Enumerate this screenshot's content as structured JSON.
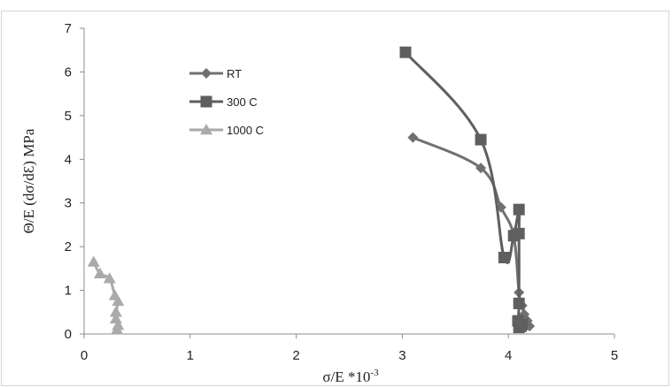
{
  "chart_data": {
    "type": "scatter",
    "xlabel": "σ/E *10",
    "xlabel_sup": "-3",
    "ylabel": "Θ/E (dσ/dƐ) MPa",
    "xlim": [
      0,
      5
    ],
    "ylim": [
      0,
      7
    ],
    "xticks": [
      "0",
      "1",
      "2",
      "3",
      "4",
      "5"
    ],
    "yticks": [
      "0",
      "1",
      "2",
      "3",
      "4",
      "5",
      "6",
      "7"
    ],
    "grid": false,
    "legend_position": "top-left",
    "series": [
      {
        "name": "RT",
        "marker": "diamond",
        "color": "#707070",
        "x": [
          3.1,
          3.74,
          3.93,
          4.05,
          4.1,
          4.13,
          4.15,
          4.18,
          4.2
        ],
        "y": [
          4.5,
          3.8,
          2.9,
          2.25,
          0.95,
          0.65,
          0.45,
          0.3,
          0.18
        ]
      },
      {
        "name": "300 C",
        "marker": "square",
        "color": "#5f5f5f",
        "x": [
          3.03,
          3.74,
          3.96,
          4.05,
          4.1,
          4.1,
          4.1,
          4.09,
          4.1,
          4.12,
          4.13
        ],
        "y": [
          6.45,
          4.45,
          1.75,
          2.25,
          2.85,
          2.3,
          0.7,
          0.3,
          0.15,
          0.18,
          0.22
        ]
      },
      {
        "name": "1000 C",
        "marker": "triangle",
        "color": "#aaaaaa",
        "x": [
          0.09,
          0.15,
          0.24,
          0.29,
          0.32,
          0.3,
          0.3,
          0.32,
          0.31
        ],
        "y": [
          1.65,
          1.38,
          1.27,
          0.88,
          0.75,
          0.5,
          0.35,
          0.2,
          0.1
        ]
      }
    ]
  }
}
